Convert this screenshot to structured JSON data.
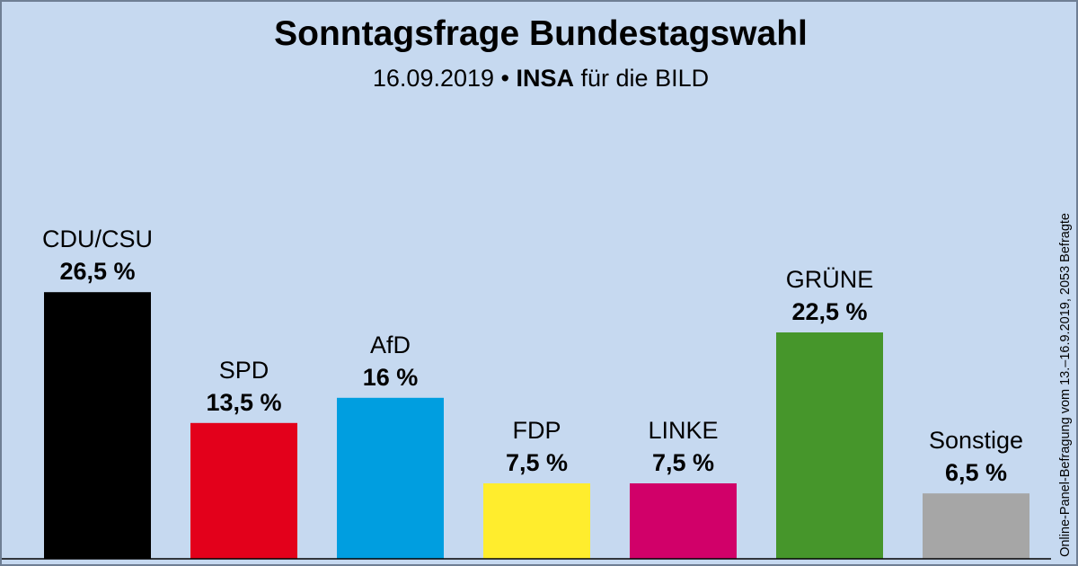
{
  "chart_data": {
    "type": "bar",
    "title": "Sonntagsfrage Bundestagswahl",
    "subtitle": {
      "date": "16.09.2019 •",
      "institute": "INSA",
      "client": "für die BILD"
    },
    "source_note": "Online-Panel-Befragung vom 13.–16.9.2019, 2053 Befragte",
    "categories": [
      "CDU/CSU",
      "SPD",
      "AfD",
      "FDP",
      "LINKE",
      "GRÜNE",
      "Sonstige"
    ],
    "values": [
      26.5,
      13.5,
      16,
      7.5,
      7.5,
      22.5,
      6.5
    ],
    "value_labels": [
      "26,5 %",
      "13,5 %",
      "16 %",
      "7,5 %",
      "7,5 %",
      "22,5 %",
      "6,5 %"
    ],
    "colors": [
      "#000000",
      "#e3001b",
      "#009ee0",
      "#ffed2d",
      "#d10069",
      "#46962b",
      "#a6a6a6"
    ],
    "ylim": [
      0,
      30
    ],
    "grid": false,
    "legend": "none"
  }
}
